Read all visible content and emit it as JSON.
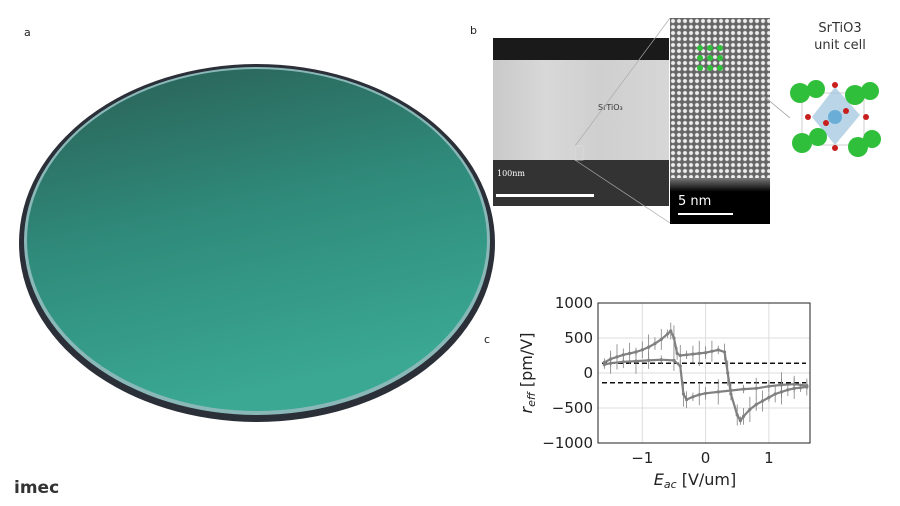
{
  "panels": {
    "a": "a",
    "b": "b",
    "c": "c"
  },
  "logo": "imec",
  "tem": {
    "film_label": "SrTiO₃",
    "scale_large": "100nm",
    "scale_small": "5 nm"
  },
  "unit_cell": {
    "title_line1": "SrTiO3",
    "title_line2": "unit cell"
  },
  "colors": {
    "wafer": "#2f8f80",
    "sr_atom": "#2fbf3a",
    "o_atom": "#c81e1e",
    "ti_atom": "#6aaed8",
    "data": "#808080"
  },
  "chart_data": {
    "type": "line",
    "xlabel": "E_ac [V/um]",
    "ylabel": "r_eff [pm/V]",
    "xlim": [
      -1.7,
      1.65
    ],
    "ylim": [
      -1000,
      1000
    ],
    "xticks": [
      -1,
      0,
      1
    ],
    "yticks": [
      -1000,
      -500,
      0,
      500,
      1000
    ],
    "grid": true,
    "reference_lines": [
      140,
      -140
    ],
    "series": [
      {
        "x": [
          -1.6,
          -1.5,
          -1.4,
          -1.3,
          -1.2,
          -1.1,
          -1.0,
          -0.9,
          -0.8,
          -0.7,
          -0.6,
          -0.55,
          -0.5,
          -0.45,
          -0.4,
          -0.3,
          -0.2,
          -0.1,
          0,
          0.1,
          0.2,
          0.3,
          0.35,
          0.4,
          0.5,
          0.55,
          0.6,
          0.7,
          0.8,
          0.9,
          1.0,
          1.1,
          1.2,
          1.3,
          1.4,
          1.5,
          1.6
        ],
        "y": [
          150,
          200,
          230,
          260,
          280,
          300,
          330,
          370,
          420,
          480,
          560,
          600,
          500,
          280,
          250,
          260,
          270,
          280,
          290,
          310,
          330,
          300,
          0,
          -300,
          -600,
          -680,
          -620,
          -520,
          -450,
          -400,
          -350,
          -300,
          -270,
          -240,
          -220,
          -210,
          -200
        ]
      },
      {
        "x": [
          1.6,
          1.4,
          1.2,
          1.0,
          0.8,
          0.6,
          0.4,
          0.2,
          0,
          -0.1,
          -0.2,
          -0.3,
          -0.35,
          -0.4,
          -0.5,
          -0.7,
          -0.9,
          -1.1,
          -1.3,
          -1.5,
          -1.6
        ],
        "y": [
          -180,
          -160,
          -170,
          -190,
          -220,
          -230,
          -250,
          -270,
          -290,
          -310,
          -340,
          -380,
          -300,
          100,
          180,
          190,
          180,
          170,
          160,
          140,
          120
        ]
      }
    ]
  }
}
